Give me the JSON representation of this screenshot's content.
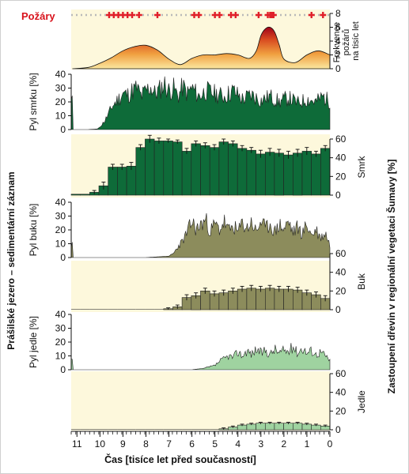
{
  "fires": {
    "title": "Požáry",
    "ylabel_lines": [
      "Frekvence",
      "požárů",
      "na tisíc let"
    ],
    "yticks": [
      "8",
      "6",
      "4",
      "2",
      "0"
    ],
    "ylim": [
      0,
      8
    ],
    "frequency_curve": {
      "x": [
        11.2,
        10.5,
        10,
        9.5,
        9,
        8.5,
        8,
        7.5,
        7,
        6.5,
        6,
        5.5,
        5,
        4.5,
        4,
        3.5,
        3.2,
        3,
        2.8,
        2.6,
        2.4,
        2.2,
        2,
        1.5,
        1,
        0.5,
        0
      ],
      "y": [
        0,
        0.2,
        0.8,
        1.6,
        2.6,
        3.2,
        3.4,
        2.7,
        1.4,
        0.6,
        1.5,
        2.0,
        2.0,
        2.2,
        2.0,
        1.5,
        2.6,
        4.8,
        5.8,
        6.0,
        5.3,
        3.4,
        1.4,
        0.9,
        2.0,
        2.6,
        2.0
      ]
    },
    "fire_events_ka": [
      9.6,
      9.4,
      9.2,
      9.0,
      8.8,
      8.6,
      8.3,
      7.5,
      5.9,
      5.7,
      5.0,
      4.8,
      4.3,
      4.1,
      3.1,
      2.7,
      2.6,
      2.55,
      2.5,
      2.45,
      0.8,
      0.3
    ]
  },
  "left_axis_title": "Prášilské jezero – sedimentární záznam",
  "right_axis_title": "Zastoupení dřevin v regionální vegetaci Šumavy [%]",
  "spruce_pollen": {
    "ylabel": "Pyl smrku [%]",
    "yticks": [
      "40",
      "30",
      "20",
      "10",
      "0"
    ],
    "ylim": [
      0,
      40
    ],
    "color": "#0e6b39"
  },
  "spruce_regional": {
    "ylabel": "Smrk",
    "yticks": [
      "60",
      "40",
      "20",
      "0"
    ],
    "ylim": [
      0,
      60
    ],
    "color": "#0e6b39",
    "values": [
      1,
      1,
      3,
      10,
      30,
      30,
      31,
      51,
      60,
      58,
      58,
      57,
      47,
      55,
      53,
      51,
      57,
      55,
      50,
      48,
      44,
      46,
      45,
      43,
      45,
      47,
      44,
      50
    ],
    "errors": [
      0,
      0,
      2,
      4,
      3,
      3,
      4,
      3,
      4,
      3,
      2,
      2,
      3,
      3,
      3,
      3,
      3,
      3,
      3,
      3,
      4,
      4,
      4,
      4,
      4,
      4,
      3,
      3
    ]
  },
  "beech_pollen": {
    "ylabel": "Pyl buku [%]",
    "yticks": [
      "40",
      "30",
      "20",
      "10",
      "0"
    ],
    "ylim": [
      0,
      40
    ],
    "color": "#8c8c5c"
  },
  "beech_regional": {
    "ylabel": "Buk",
    "yticks": [
      "60",
      "40",
      "20",
      "0"
    ],
    "ylim": [
      0,
      60
    ],
    "color": "#8c8c5c",
    "values": [
      0,
      0,
      0,
      0,
      0,
      0,
      0,
      0,
      0,
      0,
      1,
      3,
      13,
      15,
      20,
      17,
      18,
      20,
      22,
      23,
      22,
      23,
      22,
      22,
      21,
      18,
      16,
      12
    ],
    "errors": [
      0,
      0,
      0,
      0,
      0,
      0,
      0,
      0,
      0,
      0,
      1,
      2,
      3,
      3,
      3,
      3,
      3,
      3,
      3,
      3,
      3,
      3,
      3,
      3,
      3,
      3,
      3,
      3
    ]
  },
  "fir_pollen": {
    "ylabel": "Pyl jedle [%]",
    "yticks": [
      "40",
      "30",
      "20",
      "10",
      "0"
    ],
    "ylim": [
      0,
      40
    ],
    "color": "#9fd3a0"
  },
  "fir_regional": {
    "ylabel": "Jedle",
    "yticks": [
      "60",
      "40",
      "20",
      "0"
    ],
    "ylim": [
      0,
      60
    ],
    "color": "#9fd3a0",
    "values": [
      0,
      0,
      0,
      0,
      0,
      0,
      0,
      0,
      0,
      0,
      0,
      0,
      0,
      0,
      0,
      0,
      1,
      3,
      5,
      6,
      7,
      7,
      7,
      7,
      7,
      6,
      5,
      4
    ],
    "errors": [
      0,
      0,
      0,
      0,
      0,
      0,
      0,
      0,
      0,
      0,
      0,
      0,
      0,
      0,
      0,
      0,
      1,
      1,
      1,
      1,
      1,
      1,
      1,
      1,
      1,
      1,
      1,
      1
    ]
  },
  "xaxis": {
    "label": "Čas [tisíce let před současností]",
    "ticks": [
      "11",
      "10",
      "9",
      "8",
      "7",
      "6",
      "5",
      "4",
      "3",
      "2",
      "1",
      "0"
    ],
    "xlim": [
      11.25,
      0
    ]
  },
  "chart_data": [
    {
      "type": "area",
      "title": "Požáry",
      "ylabel": "Frekvence požárů na tisíc let",
      "xlabel": "Čas [tisíce let před současností]",
      "xlim": [
        11.25,
        0
      ],
      "ylim": [
        0,
        8
      ],
      "x": [
        11.2,
        10.5,
        10,
        9.5,
        9,
        8.5,
        8,
        7.5,
        7,
        6.5,
        6,
        5.5,
        5,
        4.5,
        4,
        3.5,
        3.2,
        3,
        2.8,
        2.6,
        2.4,
        2.2,
        2,
        1.5,
        1,
        0.5,
        0
      ],
      "y": [
        0,
        0.2,
        0.8,
        1.6,
        2.6,
        3.2,
        3.4,
        2.7,
        1.4,
        0.6,
        1.5,
        2.0,
        2.0,
        2.2,
        2.0,
        1.5,
        2.6,
        4.8,
        5.8,
        6.0,
        5.3,
        3.4,
        1.4,
        0.9,
        2.0,
        2.6,
        2.0
      ]
    },
    {
      "type": "area",
      "ylabel": "Pyl smrku [%]",
      "ylim": [
        0,
        40
      ],
      "x": [
        11.2,
        10.5,
        10.1,
        10,
        9.8,
        9.6,
        9.5,
        9.3,
        9.1,
        9,
        8.8,
        8.6,
        8.4,
        8.2,
        8,
        7.8,
        7.6,
        7.4,
        7.2,
        7,
        6.8,
        6.6,
        6.4,
        6.2,
        6,
        5.7,
        5.4,
        5,
        4.6,
        4.2,
        3.8,
        3.4,
        3,
        2.6,
        2.2,
        1.8,
        1.4,
        1,
        0.6,
        0.3,
        0
      ],
      "y": [
        0,
        0,
        0.5,
        2,
        6,
        12,
        16,
        20,
        24,
        26,
        25,
        28,
        30,
        24,
        28,
        31,
        26,
        29,
        33,
        28,
        30,
        24,
        31,
        26,
        30,
        24,
        28,
        26,
        24,
        28,
        22,
        25,
        21,
        24,
        20,
        23,
        19,
        22,
        20,
        24,
        20
      ]
    },
    {
      "type": "bar",
      "ylabel": "Smrk",
      "ylim": [
        0,
        60
      ],
      "values": [
        1,
        1,
        3,
        10,
        30,
        30,
        31,
        51,
        60,
        58,
        58,
        57,
        47,
        55,
        53,
        51,
        57,
        55,
        50,
        48,
        44,
        46,
        45,
        43,
        45,
        47,
        44,
        50
      ]
    },
    {
      "type": "area",
      "ylabel": "Pyl buku [%]",
      "ylim": [
        0,
        40
      ],
      "x": [
        11.2,
        8,
        7,
        6.8,
        6.6,
        6.4,
        6.2,
        6,
        5.8,
        5.6,
        5.4,
        5.2,
        5,
        4.8,
        4.6,
        4.4,
        4.2,
        4,
        3.8,
        3.6,
        3.4,
        3.2,
        3,
        2.8,
        2.6,
        2.4,
        2.2,
        2,
        1.8,
        1.6,
        1.4,
        1.2,
        1,
        0.8,
        0.6,
        0.4,
        0.2,
        0
      ],
      "y": [
        0,
        0,
        1,
        3,
        8,
        12,
        18,
        26,
        20,
        24,
        27,
        19,
        24,
        20,
        26,
        19,
        23,
        18,
        25,
        21,
        26,
        18,
        27,
        20,
        25,
        18,
        24,
        20,
        26,
        18,
        22,
        17,
        24,
        16,
        20,
        14,
        18,
        9
      ]
    },
    {
      "type": "bar",
      "ylabel": "Buk",
      "ylim": [
        0,
        60
      ],
      "values": [
        0,
        0,
        0,
        0,
        0,
        0,
        0,
        0,
        0,
        0,
        1,
        3,
        13,
        15,
        20,
        17,
        18,
        20,
        22,
        23,
        22,
        23,
        22,
        22,
        21,
        18,
        16,
        12
      ]
    },
    {
      "type": "area",
      "ylabel": "Pyl jedle [%]",
      "ylim": [
        0,
        40
      ],
      "x": [
        11.2,
        6,
        5.5,
        5,
        4.8,
        4.6,
        4.4,
        4.2,
        4,
        3.8,
        3.6,
        3.4,
        3.2,
        3,
        2.8,
        2.6,
        2.4,
        2.2,
        2,
        1.8,
        1.6,
        1.4,
        1.2,
        1,
        0.8,
        0.6,
        0.4,
        0.2,
        0
      ],
      "y": [
        0,
        0,
        1,
        3,
        6,
        8,
        10,
        9,
        13,
        10,
        14,
        11,
        15,
        12,
        14,
        11,
        15,
        12,
        14,
        13,
        17,
        12,
        16,
        12,
        14,
        11,
        13,
        10,
        7
      ]
    },
    {
      "type": "bar",
      "ylabel": "Jedle",
      "ylim": [
        0,
        60
      ],
      "values": [
        0,
        0,
        0,
        0,
        0,
        0,
        0,
        0,
        0,
        0,
        0,
        0,
        0,
        0,
        0,
        0,
        1,
        3,
        5,
        6,
        7,
        7,
        7,
        7,
        7,
        6,
        5,
        4
      ]
    }
  ]
}
